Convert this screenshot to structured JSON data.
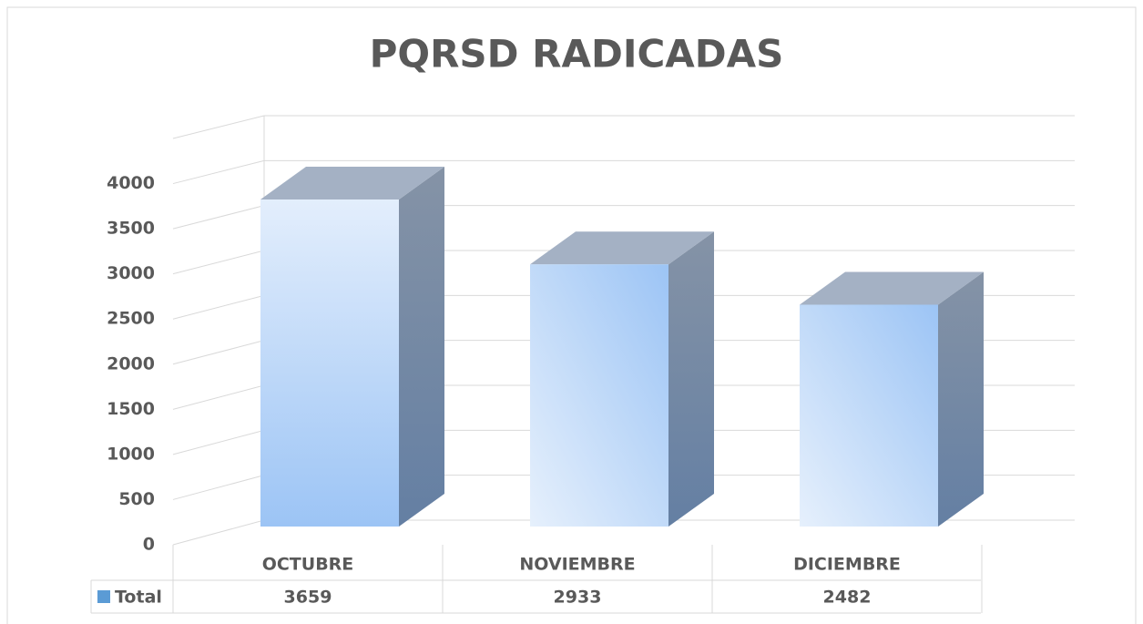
{
  "chart_data": {
    "type": "bar3d",
    "title": "PQRSD RADICADAS",
    "categories": [
      "OCTUBRE",
      "NOVIEMBRE",
      "DICIEMBRE"
    ],
    "series": [
      {
        "name": "Total",
        "color": "#5b9bd5",
        "values": [
          3659,
          2933,
          2482
        ]
      }
    ],
    "ylim": [
      0,
      4500
    ],
    "yticks": [
      0,
      500,
      1000,
      1500,
      2000,
      2500,
      3000,
      3500,
      4000
    ],
    "grid": true,
    "data_table": true
  }
}
